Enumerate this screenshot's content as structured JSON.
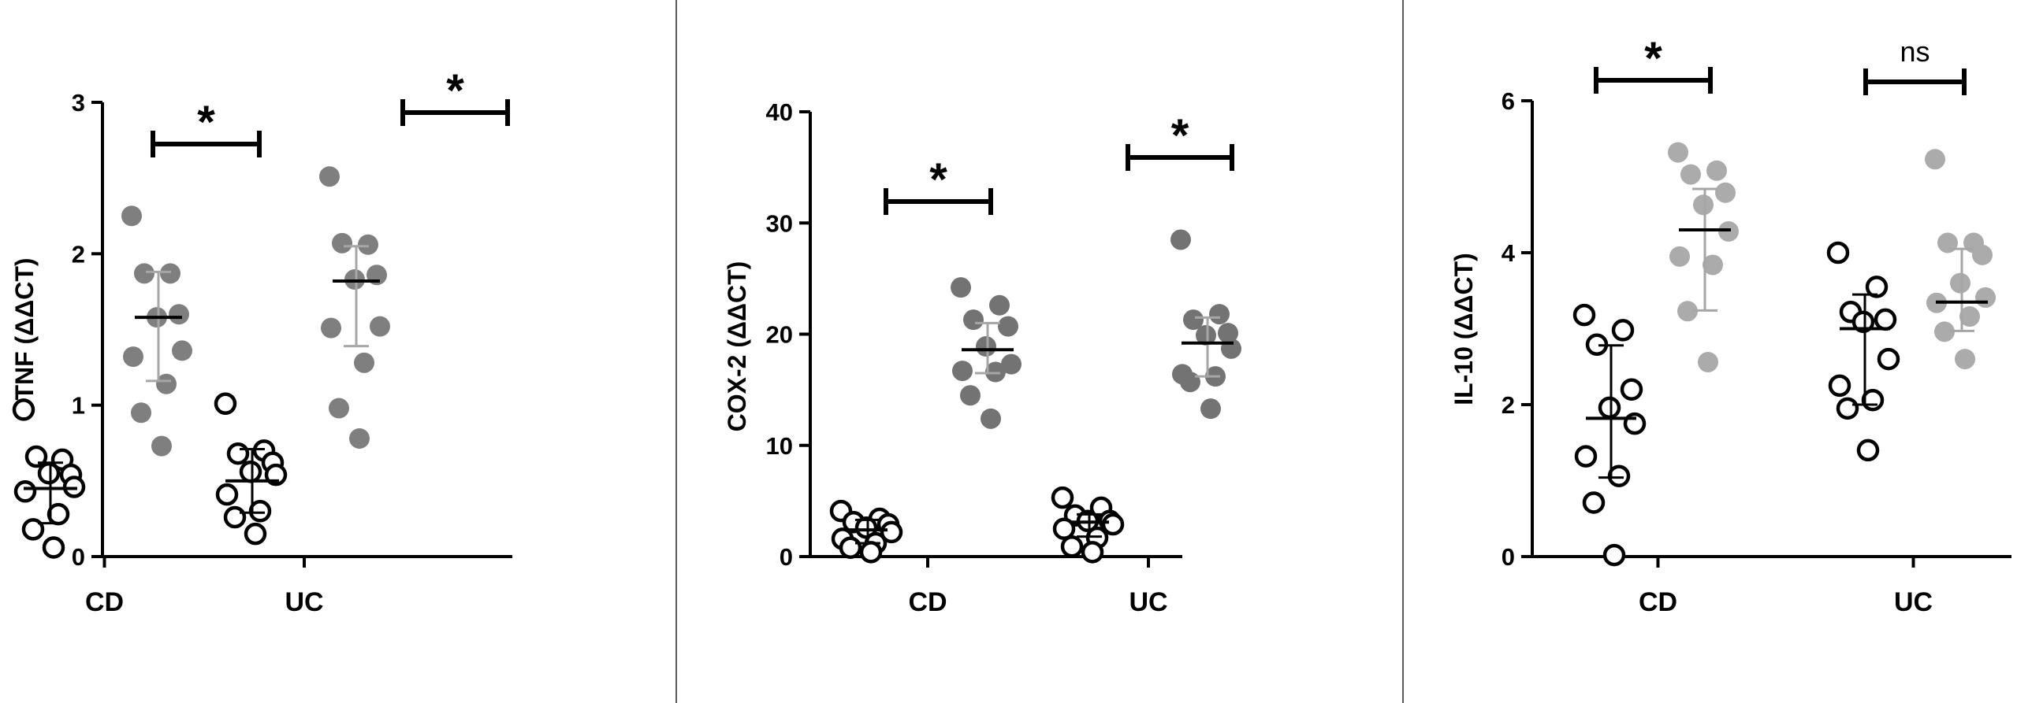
{
  "chart_data": [
    {
      "type": "scatter",
      "ylabel": "TNF (ΔΔCT)",
      "ylim": [
        0,
        3
      ],
      "yticks": [
        "0",
        "1",
        "2",
        "3"
      ],
      "categories": [
        "CD",
        "UC"
      ],
      "groups": [
        {
          "category": "CD",
          "style": "open",
          "values": [
            0.97,
            0.64,
            0.66,
            0.54,
            0.55,
            0.46,
            0.43,
            0.28,
            0.18,
            0.06
          ],
          "median": 0.45,
          "error": [
            0.22,
            0.62
          ]
        },
        {
          "category": "CD",
          "style": "filled",
          "values": [
            2.25,
            1.87,
            1.87,
            1.6,
            1.58,
            1.36,
            1.32,
            1.14,
            0.95,
            0.73
          ],
          "median": 1.58,
          "error": [
            1.16,
            1.88
          ]
        },
        {
          "category": "UC",
          "style": "open",
          "values": [
            1.01,
            0.7,
            0.68,
            0.62,
            0.56,
            0.54,
            0.41,
            0.3,
            0.26,
            0.15
          ],
          "median": 0.5,
          "error": [
            0.29,
            0.71
          ]
        },
        {
          "category": "UC",
          "style": "filled",
          "values": [
            2.51,
            2.06,
            2.07,
            1.86,
            1.83,
            1.52,
            1.51,
            1.28,
            0.98,
            0.78
          ],
          "median": 1.82,
          "error": [
            1.39,
            2.05
          ]
        }
      ],
      "significance": [
        {
          "category": "CD",
          "label": "*"
        },
        {
          "category": "UC",
          "label": "*"
        }
      ]
    },
    {
      "type": "scatter",
      "ylabel": "COX-2 (ΔΔCT)",
      "ylim": [
        0,
        40
      ],
      "yticks": [
        "0",
        "10",
        "20",
        "30",
        "40"
      ],
      "categories": [
        "CD",
        "UC"
      ],
      "groups": [
        {
          "category": "CD",
          "style": "open",
          "values": [
            4.1,
            3.4,
            3.1,
            2.9,
            2.6,
            2.2,
            1.6,
            1.2,
            0.8,
            0.4
          ],
          "median": 2.4,
          "error": [
            1.2,
            3.3
          ]
        },
        {
          "category": "CD",
          "style": "filled",
          "values": [
            24.2,
            22.6,
            21.3,
            20.7,
            18.9,
            17.3,
            16.7,
            16.6,
            14.5,
            12.4
          ],
          "median": 18.6,
          "error": [
            16.5,
            21.0
          ]
        },
        {
          "category": "UC",
          "style": "open",
          "values": [
            5.3,
            4.4,
            3.7,
            3.2,
            3.2,
            2.9,
            2.5,
            1.7,
            0.9,
            0.4
          ],
          "median": 3.1,
          "error": [
            1.8,
            3.8
          ]
        },
        {
          "category": "UC",
          "style": "filled",
          "values": [
            28.5,
            21.8,
            21.3,
            20.1,
            19.9,
            18.7,
            16.4,
            16.2,
            15.7,
            13.3
          ],
          "median": 19.2,
          "error": [
            16.2,
            21.5
          ]
        }
      ],
      "significance": [
        {
          "category": "CD",
          "label": "*"
        },
        {
          "category": "UC",
          "label": "*"
        }
      ]
    },
    {
      "type": "scatter",
      "ylabel": "IL-10 (ΔΔCT)",
      "ylim": [
        0,
        6
      ],
      "yticks": [
        "0",
        "2",
        "4",
        "6"
      ],
      "categories": [
        "CD",
        "UC"
      ],
      "groups": [
        {
          "category": "CD",
          "style": "open",
          "values": [
            3.18,
            2.98,
            2.79,
            2.2,
            1.96,
            1.75,
            1.32,
            1.06,
            0.71,
            0.02
          ],
          "median": 1.82,
          "error": [
            1.04,
            2.78
          ]
        },
        {
          "category": "CD",
          "style": "filled",
          "values": [
            5.32,
            5.08,
            5.03,
            4.79,
            4.63,
            4.28,
            3.95,
            3.84,
            3.23,
            2.56
          ],
          "median": 4.3,
          "error": [
            3.24,
            4.84
          ]
        },
        {
          "category": "UC",
          "style": "open",
          "values": [
            4.0,
            3.55,
            3.22,
            3.12,
            3.09,
            2.6,
            2.25,
            2.06,
            1.95,
            1.4
          ],
          "median": 3.0,
          "error": [
            2.0,
            3.45
          ]
        },
        {
          "category": "UC",
          "style": "filled",
          "values": [
            5.23,
            4.13,
            4.13,
            3.97,
            3.6,
            3.41,
            3.34,
            3.16,
            2.96,
            2.6
          ],
          "median": 3.35,
          "error": [
            2.97,
            4.05
          ]
        }
      ],
      "significance": [
        {
          "category": "CD",
          "label": "*"
        },
        {
          "category": "UC",
          "label": "ns"
        }
      ]
    }
  ],
  "colors": {
    "open_marker_stroke": "#000000",
    "filled_marker_panel1": "#7f7f7f",
    "filled_marker_panel2": "#737373",
    "filled_marker_panel3": "#ababab",
    "error_bar": "#a6a6a6",
    "divider": "#5a5a5a"
  }
}
